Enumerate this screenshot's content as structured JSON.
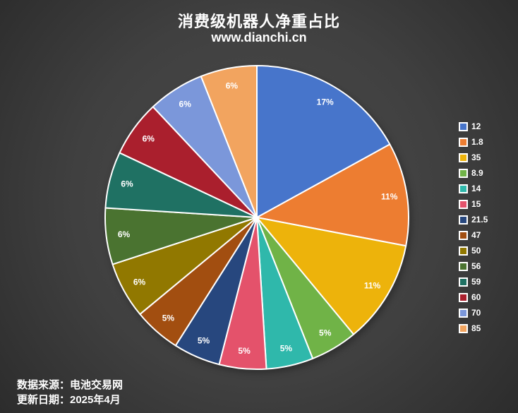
{
  "header": {
    "title": "消费级机器人净重占比",
    "subtitle": "www.dianchi.cn"
  },
  "footer": {
    "source_label": "数据来源：电池交易网",
    "update_label": "更新日期：2025年4月"
  },
  "colors": {
    "background_center": "#4b4b4b",
    "background_edge": "#2c2c2c",
    "text": "#ffffff",
    "slice_border": "#ffffff"
  },
  "chart_data": {
    "type": "pie",
    "title": "消费级机器人净重占比",
    "subtitle": "www.dianchi.cn",
    "legend_position": "right",
    "start_angle": "top",
    "direction": "clockwise",
    "unit": "%",
    "categories": [
      "12",
      "1.8",
      "35",
      "8.9",
      "14",
      "15",
      "21.5",
      "47",
      "50",
      "56",
      "59",
      "60",
      "70",
      "85"
    ],
    "values": [
      17,
      11,
      11,
      5,
      5,
      5,
      5,
      5,
      6,
      6,
      6,
      6,
      6,
      6
    ],
    "labels": [
      "17%",
      "11%",
      "11%",
      "5%",
      "5%",
      "5%",
      "5%",
      "5%",
      "6%",
      "6%",
      "6%",
      "6%",
      "6%",
      "6%"
    ],
    "colors": [
      "#4775CB",
      "#ED7D31",
      "#EDB30B",
      "#70B347",
      "#2FB8AB",
      "#E4526B",
      "#27477E",
      "#A24E10",
      "#917800",
      "#4A7330",
      "#1F7163",
      "#AA1F2D",
      "#7B97DA",
      "#F2A45F"
    ]
  }
}
